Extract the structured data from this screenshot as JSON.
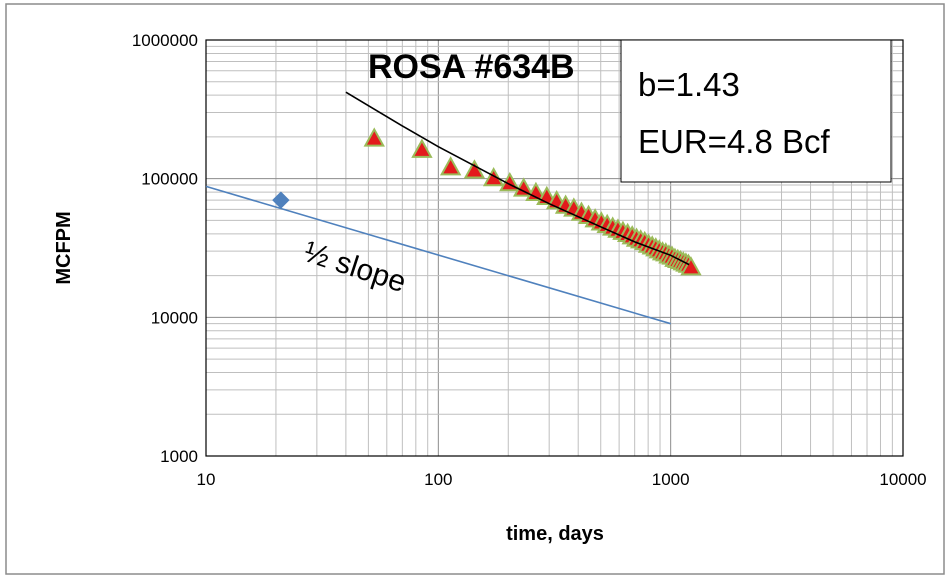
{
  "chart_data": {
    "type": "scatter",
    "title": "ROSA #634B",
    "xlabel": "time, days",
    "ylabel": "MCFPM",
    "x_scale": "log",
    "y_scale": "log",
    "xlim": [
      10,
      10000
    ],
    "ylim": [
      1000,
      1000000
    ],
    "x_ticks": [
      "10",
      "100",
      "1000",
      "10000"
    ],
    "y_ticks": [
      "1000",
      "10000",
      "100000",
      "1000000"
    ],
    "grid": true,
    "legend_box": [
      "b=1.43",
      "EUR=4.8 Bcf"
    ],
    "annotations": [
      {
        "text": "½ slope"
      }
    ],
    "colors": {
      "triangle_fill": "#e31a1c",
      "triangle_edge": "#9bbb59",
      "diamond": "#4f81bd",
      "fit_line": "#000000",
      "reference_line": "#4f81bd",
      "grid": "#bfbfbf"
    },
    "series": [
      {
        "marker": "diamond",
        "points": [
          [
            21,
            70000
          ]
        ]
      },
      {
        "marker": "triangle",
        "points": [
          [
            53,
            195000
          ],
          [
            85,
            162000
          ],
          [
            113,
            121000
          ],
          [
            143,
            115000
          ],
          [
            173,
            101000
          ],
          [
            203,
            93000
          ],
          [
            233,
            85000
          ],
          [
            263,
            79000
          ],
          [
            293,
            74000
          ],
          [
            323,
            69000
          ],
          [
            353,
            64000
          ],
          [
            383,
            61000
          ],
          [
            413,
            57000
          ],
          [
            443,
            54000
          ],
          [
            473,
            51000
          ],
          [
            503,
            48500
          ],
          [
            533,
            46500
          ],
          [
            563,
            44500
          ],
          [
            593,
            43000
          ],
          [
            623,
            41500
          ],
          [
            653,
            40000
          ],
          [
            683,
            38500
          ],
          [
            713,
            37000
          ],
          [
            743,
            36000
          ],
          [
            773,
            35000
          ],
          [
            803,
            33500
          ],
          [
            833,
            32500
          ],
          [
            863,
            31500
          ],
          [
            893,
            30500
          ],
          [
            923,
            29500
          ],
          [
            953,
            29000
          ],
          [
            983,
            28000
          ],
          [
            1013,
            27500
          ],
          [
            1043,
            26500
          ],
          [
            1073,
            26000
          ],
          [
            1103,
            25500
          ],
          [
            1133,
            25000
          ],
          [
            1163,
            24500
          ],
          [
            1193,
            24000
          ],
          [
            1223,
            23000
          ]
        ]
      },
      {
        "type": "line",
        "role": "fit",
        "points": [
          [
            40,
            420000
          ],
          [
            70,
            240000
          ],
          [
            100,
            170000
          ],
          [
            200,
            92000
          ],
          [
            300,
            66000
          ],
          [
            500,
            45000
          ],
          [
            700,
            35000
          ],
          [
            1000,
            28000
          ],
          [
            1200,
            24000
          ]
        ]
      },
      {
        "type": "line",
        "role": "reference",
        "points": [
          [
            10,
            88000
          ],
          [
            1000,
            9000
          ]
        ]
      }
    ]
  }
}
